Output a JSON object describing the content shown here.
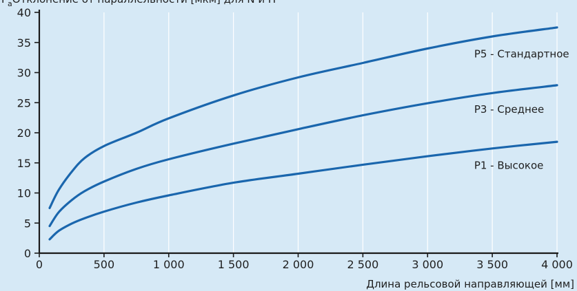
{
  "chart_data": {
    "type": "line",
    "title": "P",
    "title_sub": "a",
    "title_rest": "Отклонение от параллельности [мкм] для N и H",
    "xlabel": "Длина рельсовой направляющей [мм]",
    "ylabel": "",
    "xlim": [
      0,
      4000
    ],
    "ylim": [
      0,
      40
    ],
    "x_ticks": [
      0,
      500,
      1000,
      1500,
      2000,
      2500,
      3000,
      3500,
      4000
    ],
    "x_tick_labels": [
      "0",
      "500",
      "1 000",
      "1 500",
      "2 000",
      "2 500",
      "3 000",
      "3 500",
      "4 000"
    ],
    "y_ticks": [
      0,
      5,
      10,
      15,
      20,
      25,
      30,
      35,
      40
    ],
    "y_tick_labels": [
      "0",
      "5",
      "10",
      "15",
      "20",
      "25",
      "30",
      "35",
      "40"
    ],
    "grid": "vertical",
    "series": [
      {
        "name": "P5 - Стандартное",
        "x": [
          80,
          150,
          250,
          350,
          500,
          750,
          1000,
          1500,
          2000,
          2500,
          3000,
          3500,
          4000
        ],
        "values": [
          7.5,
          10.5,
          13.5,
          15.8,
          17.8,
          20.0,
          22.4,
          26.2,
          29.2,
          31.6,
          34.0,
          36.0,
          37.5
        ]
      },
      {
        "name": "P3 - Среднее",
        "x": [
          80,
          150,
          250,
          350,
          500,
          750,
          1000,
          1500,
          2000,
          2500,
          3000,
          3500,
          4000
        ],
        "values": [
          4.5,
          6.8,
          8.8,
          10.3,
          11.9,
          14.0,
          15.6,
          18.2,
          20.6,
          22.9,
          24.9,
          26.6,
          27.9
        ]
      },
      {
        "name": "P1 - Высокое",
        "x": [
          80,
          150,
          250,
          350,
          500,
          750,
          1000,
          1500,
          2000,
          2500,
          3000,
          3500,
          4000
        ],
        "values": [
          2.3,
          3.7,
          4.9,
          5.8,
          6.9,
          8.4,
          9.6,
          11.7,
          13.2,
          14.7,
          16.1,
          17.4,
          18.5
        ]
      }
    ],
    "colors": {
      "line": "#1a66ad",
      "background": "#d6e9f6",
      "grid": "#ffffff",
      "axis": "#1a1a1a"
    }
  }
}
